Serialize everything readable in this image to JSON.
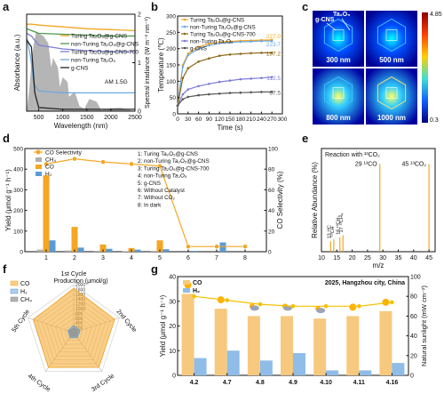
{
  "panel_letters": [
    "a",
    "b",
    "c",
    "d",
    "e",
    "f",
    "g"
  ],
  "colors": {
    "orange": "#f5a623",
    "blue": "#5b9bd5",
    "gray": "#a8a8a8",
    "cyan": "#6fa8dc",
    "purple": "#7d7dd6",
    "brown": "#8b6914",
    "green": "#4a9a4a",
    "red": "#c0504d"
  },
  "chart_data": [
    {
      "id": "a",
      "type": "line",
      "xlabel": "Wavelength (nm)",
      "ylabel": "Absorbance (a.u.)",
      "y2label": "Spectral irradiance (W m⁻² nm⁻¹)",
      "xlim": [
        250,
        2500
      ],
      "y2lim": [
        0,
        2
      ],
      "x_ticks": [
        "500",
        "1000",
        "1500",
        "2000",
        "2500"
      ],
      "y2_ticks": [
        "0",
        "1",
        "2"
      ],
      "annotation": "AM 1.5G",
      "series": [
        {
          "name": "Turing Ta₂O₅@g-CNS",
          "color": "#f5a623",
          "points": [
            [
              250,
              0.95
            ],
            [
              350,
              0.95
            ],
            [
              500,
              0.94
            ],
            [
              1000,
              0.92
            ],
            [
              1500,
              0.9
            ],
            [
              2000,
              0.89
            ],
            [
              2500,
              0.88
            ]
          ]
        },
        {
          "name": "non-Turing Ta₂O₅@g-CNS",
          "color": "#4a9a4a",
          "points": [
            [
              250,
              0.9
            ],
            [
              350,
              0.88
            ],
            [
              500,
              0.85
            ],
            [
              1000,
              0.84
            ],
            [
              1500,
              0.83
            ],
            [
              2000,
              0.82
            ],
            [
              2500,
              0.82
            ]
          ]
        },
        {
          "name": "Turing Ta₂O₅@g-CNS-700",
          "color": "#7d7dd6",
          "points": [
            [
              250,
              0.85
            ],
            [
              350,
              0.82
            ],
            [
              500,
              0.72
            ],
            [
              1000,
              0.68
            ],
            [
              1500,
              0.66
            ],
            [
              2000,
              0.65
            ],
            [
              2500,
              0.65
            ]
          ]
        },
        {
          "name": "non-Turing Ta₂O₅",
          "color": "#6fa8dc",
          "points": [
            [
              250,
              0.8
            ],
            [
              330,
              0.6
            ],
            [
              400,
              0.3
            ],
            [
              500,
              0.22
            ],
            [
              1000,
              0.2
            ],
            [
              1500,
              0.2
            ],
            [
              2000,
              0.2
            ],
            [
              2500,
              0.2
            ]
          ]
        },
        {
          "name": "g-CNS",
          "color": "#222222",
          "points": [
            [
              250,
              0.78
            ],
            [
              350,
              0.7
            ],
            [
              420,
              0.2
            ],
            [
              500,
              0.04
            ],
            [
              1000,
              0.02
            ],
            [
              2500,
              0.02
            ]
          ]
        }
      ]
    },
    {
      "id": "b",
      "type": "line",
      "xlabel": "Time (s)",
      "ylabel": "Temperature (℃)",
      "xlim": [
        0,
        300
      ],
      "ylim": [
        0,
        300
      ],
      "x_ticks": [
        0,
        30,
        60,
        90,
        120,
        150,
        180,
        210,
        240,
        270,
        300
      ],
      "y_ticks": [
        0,
        50,
        100,
        150,
        200,
        250,
        300
      ],
      "series": [
        {
          "name": "Turing Ta₂O₅@g-CNS",
          "color": "#f5a623",
          "end_label": "227.0",
          "points": [
            [
              0,
              25
            ],
            [
              15,
              150
            ],
            [
              30,
              185
            ],
            [
              60,
              205
            ],
            [
              90,
              215
            ],
            [
              120,
              220
            ],
            [
              150,
              222
            ],
            [
              180,
              224
            ],
            [
              210,
              225
            ],
            [
              240,
              226
            ],
            [
              270,
              227
            ]
          ]
        },
        {
          "name": "non-Turing Ta₂O₅@g-CNS",
          "color": "#6fa8dc",
          "end_label": "223.7",
          "points": [
            [
              0,
              25
            ],
            [
              15,
              145
            ],
            [
              30,
              180
            ],
            [
              60,
              200
            ],
            [
              90,
              210
            ],
            [
              120,
              216
            ],
            [
              150,
              219
            ],
            [
              180,
              221
            ],
            [
              210,
              222
            ],
            [
              240,
              223
            ],
            [
              270,
              223.7
            ]
          ]
        },
        {
          "name": "Turing Ta₂O₅@g-CNS-700",
          "color": "#8b6914",
          "end_label": "187.2",
          "points": [
            [
              0,
              25
            ],
            [
              15,
              110
            ],
            [
              30,
              140
            ],
            [
              60,
              160
            ],
            [
              90,
              170
            ],
            [
              120,
              178
            ],
            [
              150,
              182
            ],
            [
              180,
              184
            ],
            [
              210,
              186
            ],
            [
              240,
              187
            ],
            [
              270,
              187.2
            ]
          ]
        },
        {
          "name": "non-Turing Ta₂O₅",
          "color": "#7d7dd6",
          "end_label": "112.5",
          "points": [
            [
              0,
              25
            ],
            [
              15,
              60
            ],
            [
              30,
              75
            ],
            [
              60,
              85
            ],
            [
              90,
              92
            ],
            [
              120,
              98
            ],
            [
              150,
              102
            ],
            [
              180,
              106
            ],
            [
              210,
              108
            ],
            [
              240,
              110
            ],
            [
              270,
              112.5
            ]
          ]
        },
        {
          "name": "g-CNS",
          "color": "#555555",
          "end_label": "67.5",
          "points": [
            [
              0,
              25
            ],
            [
              15,
              45
            ],
            [
              30,
              52
            ],
            [
              60,
              57
            ],
            [
              90,
              60
            ],
            [
              120,
              62
            ],
            [
              150,
              64
            ],
            [
              180,
              65
            ],
            [
              210,
              66
            ],
            [
              240,
              67
            ],
            [
              270,
              67.5
            ]
          ]
        }
      ]
    },
    {
      "id": "c",
      "type": "heatmap",
      "labels_top": [
        "g-CNS",
        "Ta₂O₅"
      ],
      "cells": [
        "300 nm",
        "500 nm",
        "800 nm",
        "1000 nm"
      ],
      "colorbar": [
        "4.85",
        "0.3"
      ]
    },
    {
      "id": "d",
      "type": "bar",
      "ylabel": "Yield (μmol g⁻¹ h⁻¹)",
      "y2label": "CO Selectivity (%)",
      "ylim": [
        0,
        500
      ],
      "y2lim": [
        0,
        100
      ],
      "y_ticks": [
        0,
        100,
        200,
        300,
        400,
        500
      ],
      "y2_ticks": [
        0,
        20,
        40,
        60,
        80,
        100
      ],
      "categories": [
        "1",
        "2",
        "3",
        "4",
        "5",
        "6",
        "7",
        "8"
      ],
      "legend": [
        "CO Selectivity",
        "CH₄",
        "CO",
        "H₂"
      ],
      "series": [
        {
          "name": "CH₄",
          "color": "#b0b0b0",
          "values": [
            10,
            6,
            4,
            2,
            4,
            0,
            0,
            0
          ]
        },
        {
          "name": "CO",
          "color": "#f5a623",
          "values": [
            370,
            120,
            35,
            18,
            55,
            0,
            0,
            0
          ]
        },
        {
          "name": "H₂",
          "color": "#5b9bd5",
          "values": [
            55,
            20,
            14,
            10,
            12,
            4,
            45,
            0
          ]
        }
      ],
      "selectivity": [
        85,
        90,
        87,
        85,
        83,
        5,
        5,
        5
      ],
      "key": [
        "1: Turing Ta₂O₅@g-CNS",
        "2: non-Turing Ta₂O₅@g-CNS",
        "3: Turing Ta₂O₅@g-CNS-700",
        "4: non-Turing Ta₂O₅",
        "5: g-CNS",
        "6: Without Catalyst",
        "7: Without CO₂",
        "8: In dark"
      ]
    },
    {
      "id": "e",
      "type": "bar",
      "title": "Reaction with ¹³CO₂",
      "xlabel": "m/z",
      "ylabel": "Relative Abundance (%)",
      "xlim": [
        10,
        47
      ],
      "x_ticks": [
        10,
        15,
        20,
        25,
        30,
        35,
        40,
        45
      ],
      "peaks": [
        {
          "x": 13,
          "label": "13 ¹³C",
          "h": 0.1
        },
        {
          "x": 14,
          "label": "¹³CH",
          "h": 0.12
        },
        {
          "x": 16,
          "label": "16 ¹³CH₃",
          "h": 0.14
        },
        {
          "x": 17,
          "label": "17 ¹³CH₄",
          "h": 0.16
        },
        {
          "x": 29,
          "label": "29 ¹³CO",
          "h": 0.85
        },
        {
          "x": 45,
          "label": "45 ¹³CO₂",
          "h": 0.85
        }
      ]
    },
    {
      "id": "f",
      "type": "radar",
      "title": "Production (μmol/g)",
      "axes": [
        "1st Cycle",
        "2nd Cycle",
        "3rd Cycle",
        "4th Cycle",
        "5th Cycle"
      ],
      "rings": [
        200,
        400,
        600,
        800,
        1000,
        1200,
        1400,
        1600,
        1800,
        2000
      ],
      "rmax": 2000,
      "series": [
        {
          "name": "CO",
          "color": "#f5a623",
          "values": [
            1850,
            1800,
            1780,
            1790,
            1760
          ]
        },
        {
          "name": "H₂",
          "color": "#5b9bd5",
          "values": [
            300,
            280,
            260,
            270,
            250
          ]
        },
        {
          "name": "CH₄",
          "color": "#909090",
          "values": [
            200,
            190,
            180,
            190,
            185
          ]
        }
      ]
    },
    {
      "id": "g",
      "type": "bar",
      "title": "2025, Hangzhou city, China",
      "ylabel": "Yield (μmol g⁻¹ h⁻¹)",
      "y2label": "Natural sunlight (mW cm⁻²)",
      "ylim": [
        0,
        40
      ],
      "y2lim": [
        0,
        100
      ],
      "y_ticks": [
        0,
        10,
        20,
        30,
        40
      ],
      "y2_ticks": [
        0,
        20,
        40,
        60,
        80,
        100
      ],
      "categories": [
        "4.2",
        "4.7",
        "4.8",
        "4.9",
        "4.10",
        "4.11",
        "4.16"
      ],
      "weather": [
        "sunny",
        "sunny",
        "cloudy",
        "cloudy",
        "cloudy",
        "sunny",
        "sunny"
      ],
      "series": [
        {
          "name": "CO",
          "color": "#f5a623",
          "values": [
            33,
            27,
            24,
            24,
            23,
            24,
            26
          ]
        },
        {
          "name": "H₂",
          "color": "#5b9bd5",
          "values": [
            7,
            10,
            6,
            9,
            2,
            2,
            5
          ]
        }
      ],
      "sunlight": [
        80,
        76,
        72,
        70,
        70,
        70,
        74
      ]
    }
  ]
}
